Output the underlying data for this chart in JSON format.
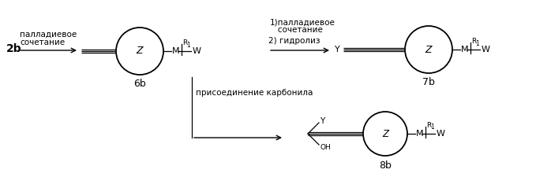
{
  "bg_color": "#ffffff",
  "text_color": "#000000",
  "figsize": [
    6.98,
    2.39
  ],
  "dpi": 100,
  "label_2b": "2b",
  "label_6b": "6b",
  "label_7b": "7b",
  "label_8b": "8b",
  "arrow1_label_line1": "палладиевое",
  "arrow1_label_line2": "сочетание",
  "arrow2_label_line1": "1)палладиевое",
  "arrow2_label_line2": "   сочетание",
  "arrow2_label_line3": "2) гидролиз",
  "arrow3_label": "присоединение карбонила",
  "font_size_labels": 8,
  "font_size_mol": 9,
  "font_size_subscript": 6.5
}
